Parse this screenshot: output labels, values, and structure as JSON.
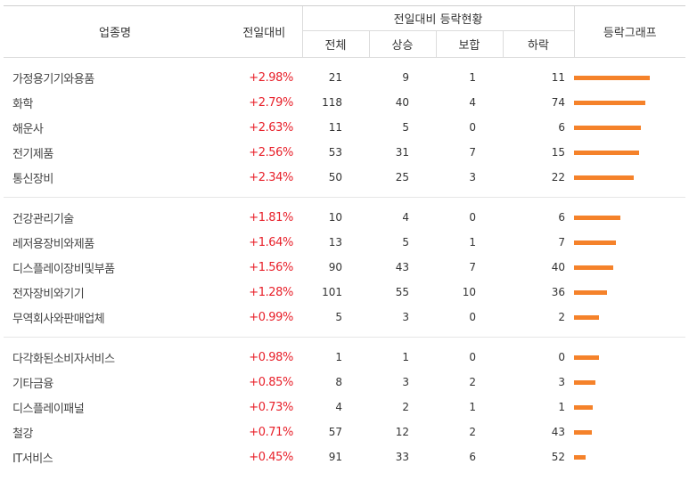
{
  "header": {
    "industry": "업종명",
    "change_rate": "전일대비",
    "group_label": "전일대비 등락현황",
    "total": "전체",
    "up": "상승",
    "flat": "보합",
    "down": "하락",
    "graph": "등락그래프"
  },
  "groups": [
    [
      {
        "name": "가정용기기와용품",
        "rate": "+2.98%",
        "total": "21",
        "up": "9",
        "flat": "1",
        "down": "11",
        "bar_value": 2.98
      },
      {
        "name": "화학",
        "rate": "+2.79%",
        "total": "118",
        "up": "40",
        "flat": "4",
        "down": "74",
        "bar_value": 2.79
      },
      {
        "name": "해운사",
        "rate": "+2.63%",
        "total": "11",
        "up": "5",
        "flat": "0",
        "down": "6",
        "bar_value": 2.63
      },
      {
        "name": "전기제품",
        "rate": "+2.56%",
        "total": "53",
        "up": "31",
        "flat": "7",
        "down": "15",
        "bar_value": 2.56
      },
      {
        "name": "통신장비",
        "rate": "+2.34%",
        "total": "50",
        "up": "25",
        "flat": "3",
        "down": "22",
        "bar_value": 2.34
      }
    ],
    [
      {
        "name": "건강관리기술",
        "rate": "+1.81%",
        "total": "10",
        "up": "4",
        "flat": "0",
        "down": "6",
        "bar_value": 1.81
      },
      {
        "name": "레저용장비와제품",
        "rate": "+1.64%",
        "total": "13",
        "up": "5",
        "flat": "1",
        "down": "7",
        "bar_value": 1.64
      },
      {
        "name": "디스플레이장비및부품",
        "rate": "+1.56%",
        "total": "90",
        "up": "43",
        "flat": "7",
        "down": "40",
        "bar_value": 1.56
      },
      {
        "name": "전자장비와기기",
        "rate": "+1.28%",
        "total": "101",
        "up": "55",
        "flat": "10",
        "down": "36",
        "bar_value": 1.28
      },
      {
        "name": "무역회사와판매업체",
        "rate": "+0.99%",
        "total": "5",
        "up": "3",
        "flat": "0",
        "down": "2",
        "bar_value": 0.99
      }
    ],
    [
      {
        "name": "다각화된소비자서비스",
        "rate": "+0.98%",
        "total": "1",
        "up": "1",
        "flat": "0",
        "down": "0",
        "bar_value": 0.98
      },
      {
        "name": "기타금융",
        "rate": "+0.85%",
        "total": "8",
        "up": "3",
        "flat": "2",
        "down": "3",
        "bar_value": 0.85
      },
      {
        "name": "디스플레이패널",
        "rate": "+0.73%",
        "total": "4",
        "up": "2",
        "flat": "1",
        "down": "1",
        "bar_value": 0.73
      },
      {
        "name": "철강",
        "rate": "+0.71%",
        "total": "57",
        "up": "12",
        "flat": "2",
        "down": "43",
        "bar_value": 0.71
      },
      {
        "name": "IT서비스",
        "rate": "+0.45%",
        "total": "91",
        "up": "33",
        "flat": "6",
        "down": "52",
        "bar_value": 0.45
      }
    ]
  ],
  "colors": {
    "rate_up": "#e8202a",
    "bar": "#f5822a"
  }
}
